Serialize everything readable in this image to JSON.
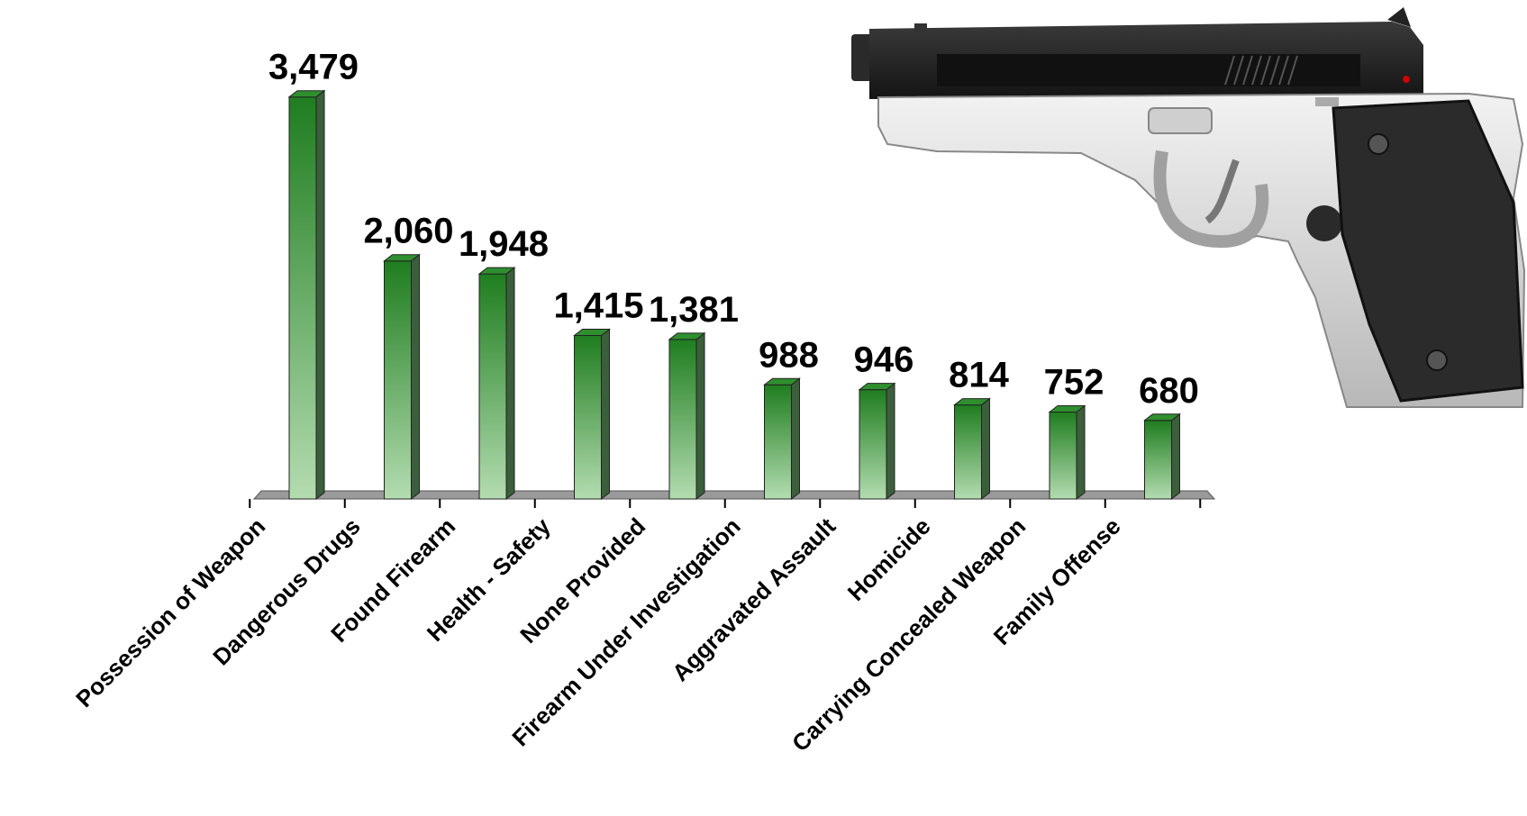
{
  "chart_data": {
    "type": "bar",
    "categories": [
      "Possession of Weapon",
      "Dangerous Drugs",
      "Found Firearm",
      "Health - Safety",
      "None Provided",
      "Firearm Under Investigation",
      "Aggravated Assault",
      "Homicide",
      "Carrying Concealed Weapon",
      "Family Offense"
    ],
    "values": [
      3479,
      2060,
      1948,
      1415,
      1381,
      988,
      946,
      814,
      752,
      680
    ],
    "value_labels": [
      "3,479",
      "2,060",
      "1,948",
      "1,415",
      "1,381",
      "988",
      "946",
      "814",
      "752",
      "680"
    ],
    "ylim": [
      0,
      3500
    ],
    "grid": false,
    "legend": "none",
    "bar_color_top": "#1f7d1f",
    "bar_color_bottom": "#b3dcb0",
    "bar_side_color": "#3b5e3b",
    "floor_color": "#9a9a9a",
    "decoration": "pistol-icon"
  }
}
